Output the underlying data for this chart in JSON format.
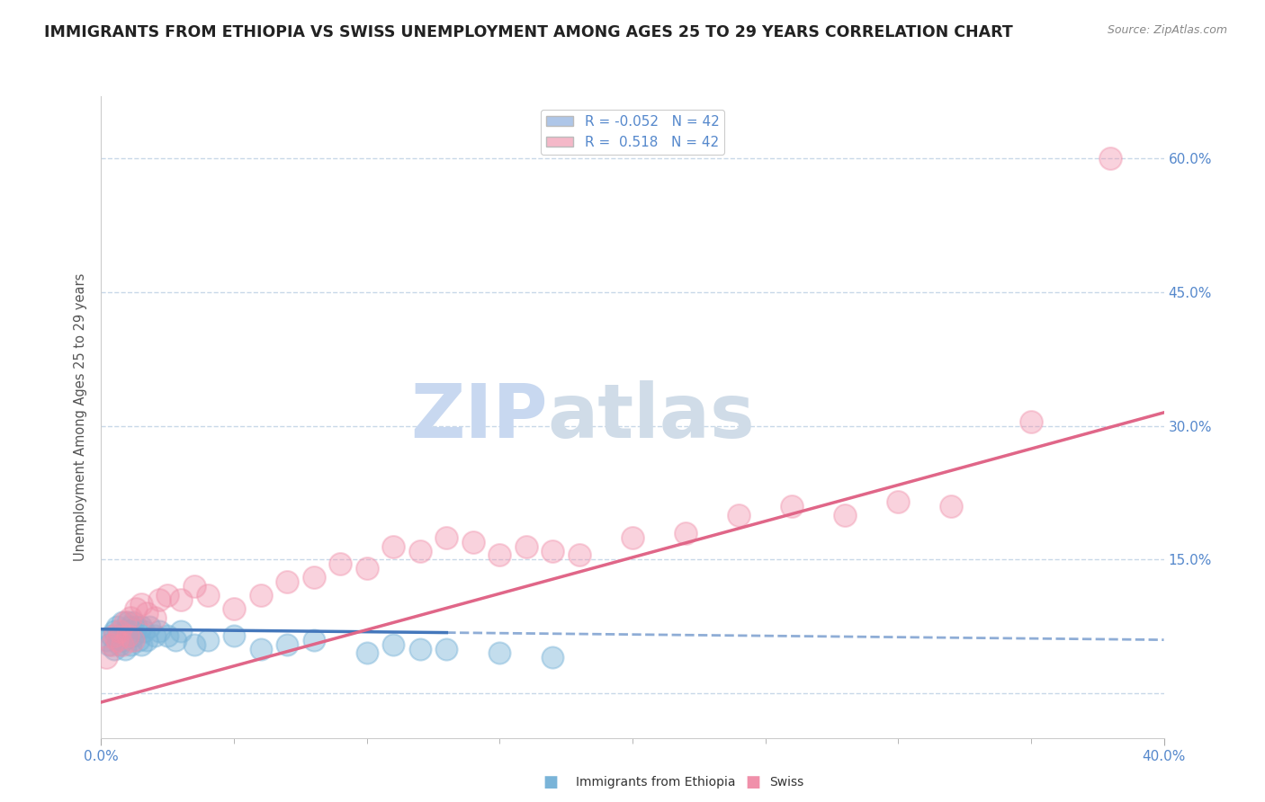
{
  "title": "IMMIGRANTS FROM ETHIOPIA VS SWISS UNEMPLOYMENT AMONG AGES 25 TO 29 YEARS CORRELATION CHART",
  "source": "Source: ZipAtlas.com",
  "ylabel_ticks": [
    0.0,
    0.15,
    0.3,
    0.45,
    0.6
  ],
  "ylabel_labels": [
    "",
    "15.0%",
    "30.0%",
    "45.0%",
    "60.0%"
  ],
  "xlim": [
    0.0,
    0.4
  ],
  "ylim": [
    -0.05,
    0.67
  ],
  "legend_entries": [
    {
      "label": "R = -0.052   N = 42",
      "color": "#aec6e8"
    },
    {
      "label": "R =  0.518   N = 42",
      "color": "#f4b8c8"
    }
  ],
  "watermark_zip": "ZIP",
  "watermark_atlas": "atlas",
  "blue_color": "#7ab4d8",
  "pink_color": "#f090aa",
  "blue_line_color": "#4477bb",
  "pink_line_color": "#e06688",
  "blue_scatter_x": [
    0.002,
    0.003,
    0.004,
    0.005,
    0.005,
    0.006,
    0.007,
    0.007,
    0.008,
    0.008,
    0.009,
    0.009,
    0.01,
    0.01,
    0.011,
    0.011,
    0.012,
    0.012,
    0.013,
    0.014,
    0.015,
    0.015,
    0.016,
    0.017,
    0.018,
    0.02,
    0.022,
    0.025,
    0.028,
    0.03,
    0.035,
    0.04,
    0.05,
    0.06,
    0.07,
    0.08,
    0.1,
    0.11,
    0.12,
    0.13,
    0.15,
    0.17
  ],
  "blue_scatter_y": [
    0.06,
    0.055,
    0.065,
    0.07,
    0.05,
    0.075,
    0.065,
    0.055,
    0.08,
    0.06,
    0.07,
    0.05,
    0.08,
    0.065,
    0.075,
    0.055,
    0.08,
    0.065,
    0.075,
    0.06,
    0.075,
    0.055,
    0.07,
    0.06,
    0.075,
    0.065,
    0.07,
    0.065,
    0.06,
    0.07,
    0.055,
    0.06,
    0.065,
    0.05,
    0.055,
    0.06,
    0.045,
    0.055,
    0.05,
    0.05,
    0.045,
    0.04
  ],
  "pink_scatter_x": [
    0.002,
    0.004,
    0.005,
    0.006,
    0.007,
    0.008,
    0.009,
    0.01,
    0.011,
    0.012,
    0.013,
    0.015,
    0.017,
    0.02,
    0.022,
    0.025,
    0.03,
    0.035,
    0.04,
    0.05,
    0.06,
    0.07,
    0.08,
    0.09,
    0.1,
    0.11,
    0.12,
    0.13,
    0.14,
    0.15,
    0.16,
    0.17,
    0.18,
    0.2,
    0.22,
    0.24,
    0.26,
    0.28,
    0.3,
    0.32,
    0.35,
    0.38
  ],
  "pink_scatter_y": [
    0.04,
    0.055,
    0.065,
    0.06,
    0.07,
    0.055,
    0.08,
    0.065,
    0.085,
    0.06,
    0.095,
    0.1,
    0.09,
    0.085,
    0.105,
    0.11,
    0.105,
    0.12,
    0.11,
    0.095,
    0.11,
    0.125,
    0.13,
    0.145,
    0.14,
    0.165,
    0.16,
    0.175,
    0.17,
    0.155,
    0.165,
    0.16,
    0.155,
    0.175,
    0.18,
    0.2,
    0.21,
    0.2,
    0.215,
    0.21,
    0.305,
    0.6
  ],
  "blue_trend_x": [
    0.0,
    0.4
  ],
  "blue_trend_y": [
    0.072,
    0.06
  ],
  "blue_trend_solid_end": 0.13,
  "pink_trend_x": [
    0.0,
    0.4
  ],
  "pink_trend_y": [
    -0.01,
    0.315
  ],
  "background_color": "#ffffff",
  "grid_color": "#c8d8e8",
  "title_color": "#222222",
  "axis_label_color": "#5588cc",
  "watermark_color_zip": "#c8d8f0",
  "watermark_color_atlas": "#d0dce8",
  "font_size_title": 12.5,
  "font_size_ticks": 11,
  "font_size_legend": 11,
  "font_size_watermark": 60
}
